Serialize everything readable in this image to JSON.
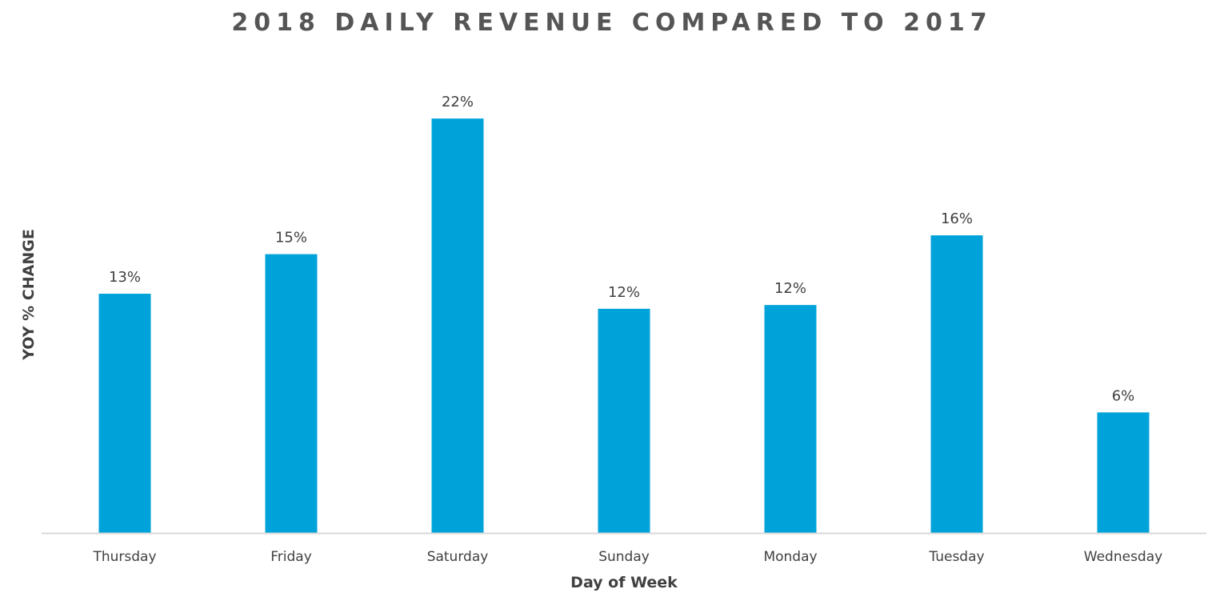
{
  "chart_data": {
    "type": "bar",
    "title": "2018 DAILY REVENUE COMPARED TO 2017",
    "xlabel": "Day of Week",
    "ylabel": "YOY % CHANGE",
    "categories": [
      "Thursday",
      "Friday",
      "Saturday",
      "Sunday",
      "Monday",
      "Tuesday",
      "Wednesday"
    ],
    "values": [
      12.7,
      14.8,
      22.0,
      11.9,
      12.1,
      15.8,
      6.4
    ],
    "data_labels": [
      "13%",
      "15%",
      "22%",
      "12%",
      "12%",
      "16%",
      "6%"
    ],
    "ylim": [
      0,
      22.6
    ],
    "grid": false,
    "legend": "none",
    "colors": {
      "bar": "#00A3D9",
      "axis": "#D9D9D9",
      "text": "#404040",
      "title": "#555555"
    }
  }
}
